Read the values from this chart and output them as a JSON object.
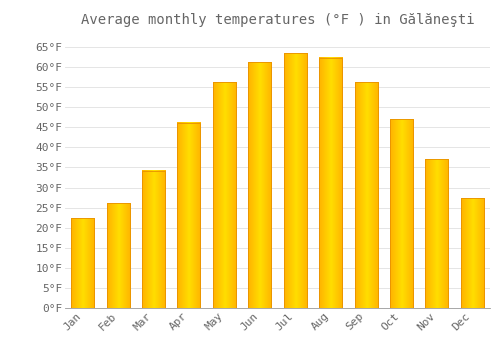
{
  "title": "Average monthly temperatures (°F ) in Gălăneşti",
  "months": [
    "Jan",
    "Feb",
    "Mar",
    "Apr",
    "May",
    "Jun",
    "Jul",
    "Aug",
    "Sep",
    "Oct",
    "Nov",
    "Dec"
  ],
  "values": [
    22.3,
    26.1,
    34.2,
    46.2,
    56.2,
    61.2,
    63.4,
    62.3,
    56.2,
    47.0,
    37.0,
    27.3
  ],
  "bar_color_main": "#FFB300",
  "bar_color_light": "#FFDD00",
  "bar_color_edge": "#E89000",
  "background_color": "#ffffff",
  "grid_color": "#e0e0e0",
  "text_color": "#666666",
  "ylim": [
    0,
    68
  ],
  "yticks": [
    0,
    5,
    10,
    15,
    20,
    25,
    30,
    35,
    40,
    45,
    50,
    55,
    60,
    65
  ],
  "title_fontsize": 10,
  "tick_fontsize": 8
}
